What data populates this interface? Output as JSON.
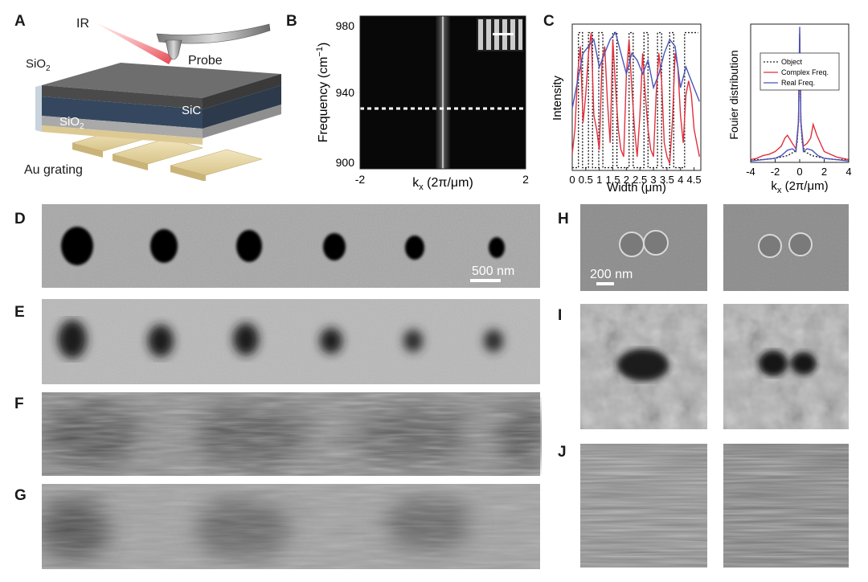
{
  "panel_labels": [
    "A",
    "B",
    "C",
    "D",
    "E",
    "F",
    "G",
    "H",
    "I",
    "J"
  ],
  "panelA": {
    "ir": "IR",
    "probe": "Probe",
    "sio2_top": "SiO",
    "sio2_top_sub": "2",
    "sic": "SiC",
    "sio2_bottom": "SiO",
    "sio2_bottom_sub": "2",
    "grating": "Au grating"
  },
  "panelB": {
    "ylabel": "Frequency (cm",
    "ylabel_sup": "−1",
    "ylabel_close": ")",
    "yticks": [
      "980",
      "940",
      "900"
    ],
    "xticks": [
      "-2",
      "2"
    ],
    "xlabel_k": "k",
    "xlabel_sub": "x",
    "xlabel_rest": " (2π/μm)"
  },
  "chart_data": [
    {
      "type": "line",
      "xlabel": "Width (μm)",
      "ylabel": "Intensity",
      "xlim": [
        0,
        4.75
      ],
      "xticks": [
        "0",
        "0.5",
        "1",
        "1.5",
        "2",
        "2.5",
        "3",
        "3.5",
        "4",
        "4.5"
      ],
      "series": [
        {
          "name": "Object",
          "color": "#222222",
          "x": [
            0,
            0.23,
            0.23,
            0.38,
            0.38,
            0.6,
            0.6,
            0.75,
            0.75,
            0.98,
            0.98,
            1.13,
            1.13,
            1.5,
            1.5,
            1.65,
            1.65,
            2.1,
            2.1,
            2.25,
            2.25,
            2.65,
            2.65,
            2.8,
            2.8,
            3.15,
            3.15,
            3.3,
            3.3,
            3.6,
            3.6,
            3.75,
            3.75,
            4.15,
            4.15,
            4.65
          ],
          "y": [
            0.02,
            0.02,
            1,
            1,
            0.02,
            0.02,
            1,
            1,
            0.02,
            0.02,
            1,
            1,
            0.02,
            0.02,
            1,
            1,
            0.02,
            0.02,
            1,
            1,
            0.02,
            0.02,
            1,
            1,
            0.02,
            0.02,
            1,
            1,
            0.02,
            0.02,
            1,
            1,
            0.02,
            0.02,
            1,
            1
          ]
        },
        {
          "name": "Complex Freq.",
          "color": "#e0303c",
          "x": [
            0,
            0.1,
            0.2,
            0.3,
            0.4,
            0.5,
            0.6,
            0.7,
            0.8,
            0.9,
            1.0,
            1.1,
            1.2,
            1.3,
            1.4,
            1.5,
            1.6,
            1.7,
            1.8,
            1.9,
            2.0,
            2.1,
            2.2,
            2.3,
            2.4,
            2.5,
            2.6,
            2.7,
            2.8,
            2.9,
            3.0,
            3.1,
            3.2,
            3.3,
            3.4,
            3.5,
            3.6,
            3.7,
            3.8,
            3.9,
            4.0,
            4.1,
            4.2,
            4.3,
            4.4,
            4.5,
            4.6,
            4.7
          ],
          "y": [
            0.12,
            0.3,
            0.7,
            0.9,
            0.35,
            0.55,
            0.85,
            1.0,
            0.4,
            0.3,
            0.15,
            0.8,
            0.9,
            0.5,
            0.2,
            0.95,
            0.6,
            0.3,
            0.15,
            0.1,
            0.7,
            0.95,
            0.6,
            0.3,
            0.1,
            0.4,
            0.85,
            0.55,
            0.3,
            0.15,
            0.1,
            0.55,
            0.85,
            0.65,
            0.2,
            0.1,
            0.05,
            0.35,
            0.85,
            0.75,
            0.4,
            0.2,
            0.55,
            0.65,
            0.55,
            0.3,
            0.2,
            0.1
          ]
        },
        {
          "name": "Real Freq.",
          "color": "#4a55b8",
          "x": [
            0,
            0.2,
            0.4,
            0.6,
            0.8,
            1.0,
            1.2,
            1.4,
            1.6,
            1.8,
            2.0,
            2.2,
            2.4,
            2.6,
            2.8,
            3.0,
            3.2,
            3.4,
            3.6,
            3.8,
            4.0,
            4.2,
            4.4,
            4.6,
            4.7
          ],
          "y": [
            0.45,
            0.65,
            0.85,
            0.9,
            0.95,
            0.75,
            0.85,
            0.95,
            1.0,
            0.85,
            0.7,
            0.85,
            0.8,
            0.7,
            0.8,
            0.6,
            0.7,
            0.85,
            0.95,
            0.9,
            0.6,
            0.75,
            0.65,
            0.55,
            0.5
          ]
        }
      ]
    },
    {
      "type": "line",
      "xlabel_k": "k",
      "xlabel_sub": "x",
      "xlabel_rest": " (2π/μm)",
      "ylabel": "Fouier distribution",
      "xlim": [
        -4,
        4
      ],
      "xticks": [
        "-4",
        "-2",
        "0",
        "2",
        "4"
      ],
      "legend": [
        "Object",
        "Complex Freq.",
        "Real Freq."
      ],
      "legend_position": "upper-left",
      "series": [
        {
          "name": "Object",
          "color": "#222222",
          "x": [
            -4,
            -3,
            -2,
            -1,
            -0.4,
            -0.2,
            -0.1,
            0,
            0.1,
            0.2,
            0.4,
            1,
            2,
            3,
            4
          ],
          "y": [
            0.02,
            0.02,
            0.03,
            0.05,
            0.08,
            0.15,
            0.3,
            0.92,
            0.3,
            0.15,
            0.08,
            0.05,
            0.03,
            0.02,
            0.02
          ]
        },
        {
          "name": "Complex Freq.",
          "color": "#e0303c",
          "x": [
            -4,
            -3.5,
            -3,
            -2.5,
            -2,
            -1.5,
            -1.2,
            -1,
            -0.6,
            -0.3,
            -0.1,
            0,
            0.1,
            0.3,
            0.6,
            0.9,
            1.1,
            1.4,
            1.7,
            2,
            2.5,
            3,
            3.5,
            4
          ],
          "y": [
            0.02,
            0.03,
            0.05,
            0.06,
            0.08,
            0.12,
            0.18,
            0.2,
            0.14,
            0.1,
            0.3,
            0.95,
            0.3,
            0.12,
            0.14,
            0.18,
            0.28,
            0.2,
            0.14,
            0.08,
            0.06,
            0.04,
            0.03,
            0.02
          ]
        },
        {
          "name": "Real Freq.",
          "color": "#4a55b8",
          "x": [
            -4,
            -3,
            -2,
            -1.5,
            -1,
            -0.6,
            -0.3,
            -0.1,
            0,
            0.1,
            0.3,
            0.6,
            1,
            1.5,
            2,
            3,
            4
          ],
          "y": [
            0.01,
            0.02,
            0.03,
            0.05,
            0.09,
            0.1,
            0.08,
            0.3,
            1.0,
            0.3,
            0.08,
            0.1,
            0.09,
            0.05,
            0.03,
            0.02,
            0.01
          ]
        }
      ]
    }
  ],
  "scalebars": {
    "d": "500 nm",
    "h": "200 nm"
  },
  "colors": {
    "red": "#e0303c",
    "blue": "#4a55b8",
    "sic": "#35475e"
  }
}
